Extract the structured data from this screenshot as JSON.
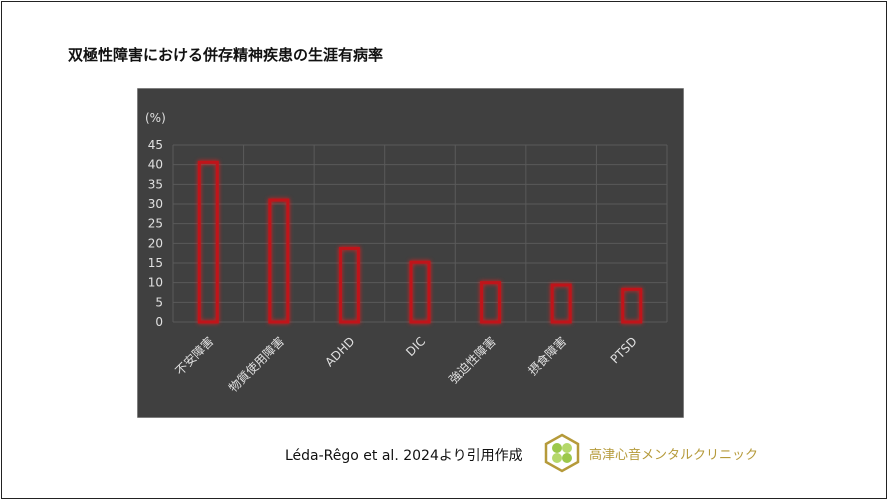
{
  "title": "双極性障害における併存精神疾患の生涯有病率",
  "citation": "Léda-Rêgo et al. 2024より引用作成",
  "clinic_name": "高津心音メンタルクリニック",
  "chart_data": {
    "type": "bar",
    "title": "",
    "ylabel": "(%)",
    "xlabel": "",
    "categories": [
      "不安障害",
      "物質使用障害",
      "ADHD",
      "DIC",
      "強迫性障害",
      "摂食障害",
      "PTSD"
    ],
    "values": [
      40.6,
      31,
      18.7,
      15.2,
      10,
      9.4,
      8.3
    ],
    "ylim": [
      0,
      45
    ],
    "yticks": [
      0,
      5,
      10,
      15,
      20,
      25,
      30,
      35,
      40,
      45
    ],
    "grid": true,
    "colors": {
      "background": "#404040",
      "bar_outline": "#c0141a",
      "grid": "#5a5a5a",
      "text": "#e0e0e0"
    }
  }
}
